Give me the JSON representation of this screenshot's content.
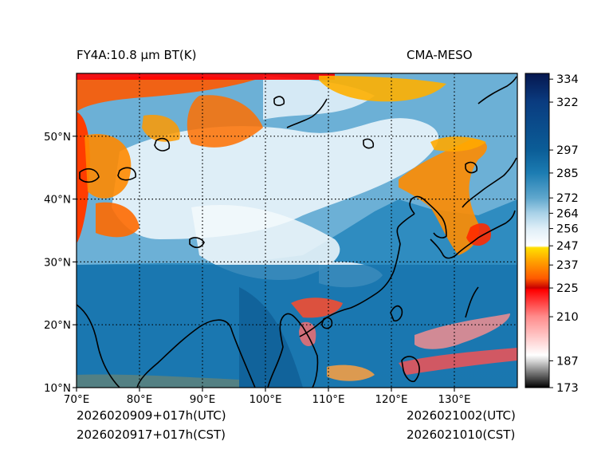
{
  "header": {
    "left_title": "FY4A:10.8 μm BT(K)",
    "right_title": "CMA-MESO"
  },
  "footer": {
    "init_utc": "2026020909+017h(UTC)",
    "init_cst": "2026020917+017h(CST)",
    "valid_utc": "2026021002(UTC)",
    "valid_cst": "2026021010(CST)"
  },
  "map": {
    "lon_range": [
      70,
      140
    ],
    "lat_range": [
      10,
      60
    ],
    "lon_ticks": [
      {
        "value": 70,
        "label": "70°E"
      },
      {
        "value": 80,
        "label": "80°E"
      },
      {
        "value": 90,
        "label": "90°E"
      },
      {
        "value": 100,
        "label": "100°E"
      },
      {
        "value": 110,
        "label": "110°E"
      },
      {
        "value": 120,
        "label": "120°E"
      },
      {
        "value": 130,
        "label": "130°E"
      }
    ],
    "lat_ticks": [
      {
        "value": 10,
        "label": "10°N"
      },
      {
        "value": 20,
        "label": "20°N"
      },
      {
        "value": 30,
        "label": "30°N"
      },
      {
        "value": 40,
        "label": "40°N"
      },
      {
        "value": 50,
        "label": "50°N"
      }
    ],
    "gridlines": "dotted"
  },
  "colorbar": {
    "range": [
      173,
      337
    ],
    "ticks": [
      {
        "value": 334,
        "label": "334"
      },
      {
        "value": 322,
        "label": "322"
      },
      {
        "value": 297,
        "label": "297"
      },
      {
        "value": 285,
        "label": "285"
      },
      {
        "value": 272,
        "label": "272"
      },
      {
        "value": 264,
        "label": "264"
      },
      {
        "value": 256,
        "label": "256"
      },
      {
        "value": 247,
        "label": "247"
      },
      {
        "value": 237,
        "label": "237"
      },
      {
        "value": 225,
        "label": "225"
      },
      {
        "value": 210,
        "label": "210"
      },
      {
        "value": 187,
        "label": "187"
      },
      {
        "value": 173,
        "label": "173"
      }
    ],
    "stops": [
      {
        "value": 173,
        "color": "#000000"
      },
      {
        "value": 187,
        "color": "#d8d8d8"
      },
      {
        "value": 190,
        "color": "#ffffff"
      },
      {
        "value": 210,
        "color": "#ff8c8c"
      },
      {
        "value": 224,
        "color": "#ff0000"
      },
      {
        "value": 225,
        "color": "#c80000"
      },
      {
        "value": 230,
        "color": "#ff5a00"
      },
      {
        "value": 240,
        "color": "#ffaa00"
      },
      {
        "value": 246,
        "color": "#ffe000"
      },
      {
        "value": 247,
        "color": "#ffffff"
      },
      {
        "value": 256,
        "color": "#dfeef7"
      },
      {
        "value": 264,
        "color": "#a9d2e8"
      },
      {
        "value": 272,
        "color": "#5fa7cd"
      },
      {
        "value": 285,
        "color": "#1c7cb2"
      },
      {
        "value": 297,
        "color": "#0b5d97"
      },
      {
        "value": 322,
        "color": "#0a3c80"
      },
      {
        "value": 337,
        "color": "#06174f"
      }
    ]
  }
}
